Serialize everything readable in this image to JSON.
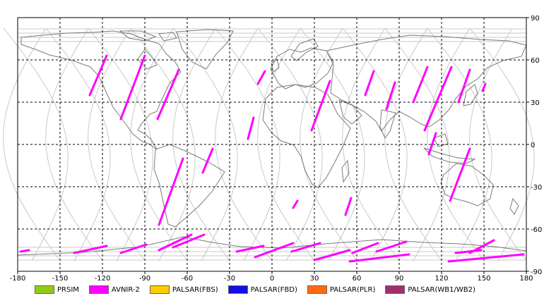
{
  "map": {
    "lon_range": [
      -180,
      180
    ],
    "lat_range": [
      -90,
      90
    ],
    "x_ticks": [
      -180,
      -150,
      -120,
      -90,
      -60,
      -30,
      0,
      30,
      60,
      90,
      120,
      150,
      180
    ],
    "y_ticks": [
      90,
      60,
      30,
      0,
      -30,
      -60,
      -90
    ],
    "x_tick_labels": [
      "-180",
      "-150",
      "-120",
      "-90",
      "-60",
      "-30",
      "0",
      "30",
      "60",
      "90",
      "120",
      "150",
      "180"
    ],
    "y_tick_labels": [
      "90",
      "60",
      "30",
      "0",
      "-30",
      "-60",
      "-90"
    ],
    "grid": true,
    "grid_style": "dashed",
    "colors": {
      "coastline": "#7a7a7a",
      "orbit_track": "#c8c8c8",
      "grid": "#000000",
      "frame": "#000000"
    }
  },
  "legend": [
    {
      "label": "PRSIM",
      "color": "#8fcc16"
    },
    {
      "label": "AVNIR-2",
      "color": "#ff00ff"
    },
    {
      "label": "PALSAR(FBS)",
      "color": "#ffcc00"
    },
    {
      "label": "PALSAR(FBD)",
      "color": "#1010e0"
    },
    {
      "label": "PALSAR(PLR)",
      "color": "#ff6a10"
    },
    {
      "label": "PALSAR(WB1/WB2)",
      "color": "#a0306a"
    }
  ],
  "observation_segments": [
    {
      "sensor": "AVNIR-2",
      "from": [
        -117,
        63
      ],
      "to": [
        -129,
        35
      ]
    },
    {
      "sensor": "AVNIR-2",
      "from": [
        -90,
        63
      ],
      "to": [
        -107,
        18
      ]
    },
    {
      "sensor": "AVNIR-2",
      "from": [
        -66,
        53
      ],
      "to": [
        -81,
        18
      ]
    },
    {
      "sensor": "AVNIR-2",
      "from": [
        -63,
        -10
      ],
      "to": [
        -80,
        -57
      ]
    },
    {
      "sensor": "AVNIR-2",
      "from": [
        -42,
        -3
      ],
      "to": [
        -49,
        -20
      ]
    },
    {
      "sensor": "AVNIR-2",
      "from": [
        -5,
        52
      ],
      "to": [
        -10,
        43
      ]
    },
    {
      "sensor": "AVNIR-2",
      "from": [
        -13,
        19
      ],
      "to": [
        -17,
        4
      ]
    },
    {
      "sensor": "AVNIR-2",
      "from": [
        41,
        45
      ],
      "to": [
        28,
        10
      ]
    },
    {
      "sensor": "AVNIR-2",
      "from": [
        18,
        -40
      ],
      "to": [
        15,
        -45
      ]
    },
    {
      "sensor": "AVNIR-2",
      "from": [
        56,
        -38
      ],
      "to": [
        52,
        -50
      ]
    },
    {
      "sensor": "AVNIR-2",
      "from": [
        72,
        52
      ],
      "to": [
        66,
        35
      ]
    },
    {
      "sensor": "AVNIR-2",
      "from": [
        87,
        44
      ],
      "to": [
        81,
        25
      ]
    },
    {
      "sensor": "AVNIR-2",
      "from": [
        110,
        55
      ],
      "to": [
        100,
        30
      ]
    },
    {
      "sensor": "AVNIR-2",
      "from": [
        127,
        55
      ],
      "to": [
        108,
        10
      ]
    },
    {
      "sensor": "AVNIR-2",
      "from": [
        140,
        53
      ],
      "to": [
        132,
        30
      ]
    },
    {
      "sensor": "AVNIR-2",
      "from": [
        116,
        8
      ],
      "to": [
        111,
        -7
      ]
    },
    {
      "sensor": "AVNIR-2",
      "from": [
        140,
        -3
      ],
      "to": [
        126,
        -40
      ]
    },
    {
      "sensor": "AVNIR-2",
      "from": [
        151,
        43
      ],
      "to": [
        149,
        38
      ]
    },
    {
      "sensor": "AVNIR-2",
      "from": [
        -178,
        -76
      ],
      "to": [
        -172,
        -75
      ]
    },
    {
      "sensor": "AVNIR-2",
      "from": [
        -140,
        -77
      ],
      "to": [
        -117,
        -72
      ]
    },
    {
      "sensor": "AVNIR-2",
      "from": [
        -107,
        -77
      ],
      "to": [
        -89,
        -71
      ]
    },
    {
      "sensor": "AVNIR-2",
      "from": [
        -80,
        -75
      ],
      "to": [
        -57,
        -64
      ]
    },
    {
      "sensor": "AVNIR-2",
      "from": [
        -70,
        -73
      ],
      "to": [
        -48,
        -64
      ]
    },
    {
      "sensor": "AVNIR-2",
      "from": [
        -25,
        -76
      ],
      "to": [
        -6,
        -72
      ]
    },
    {
      "sensor": "AVNIR-2",
      "from": [
        -12,
        -80
      ],
      "to": [
        15,
        -70
      ]
    },
    {
      "sensor": "AVNIR-2",
      "from": [
        14,
        -76
      ],
      "to": [
        34,
        -70
      ]
    },
    {
      "sensor": "AVNIR-2",
      "from": [
        30,
        -82
      ],
      "to": [
        55,
        -75
      ]
    },
    {
      "sensor": "AVNIR-2",
      "from": [
        57,
        -77
      ],
      "to": [
        75,
        -70
      ]
    },
    {
      "sensor": "AVNIR-2",
      "from": [
        74,
        -76
      ],
      "to": [
        95,
        -69
      ]
    },
    {
      "sensor": "AVNIR-2",
      "from": [
        55,
        -83
      ],
      "to": [
        97,
        -78
      ]
    },
    {
      "sensor": "AVNIR-2",
      "from": [
        140,
        -77
      ],
      "to": [
        157,
        -68
      ]
    },
    {
      "sensor": "AVNIR-2",
      "from": [
        125,
        -83
      ],
      "to": [
        178,
        -78
      ]
    },
    {
      "sensor": "AVNIR-2",
      "from": [
        130,
        -77
      ],
      "to": [
        148,
        -75
      ]
    }
  ]
}
